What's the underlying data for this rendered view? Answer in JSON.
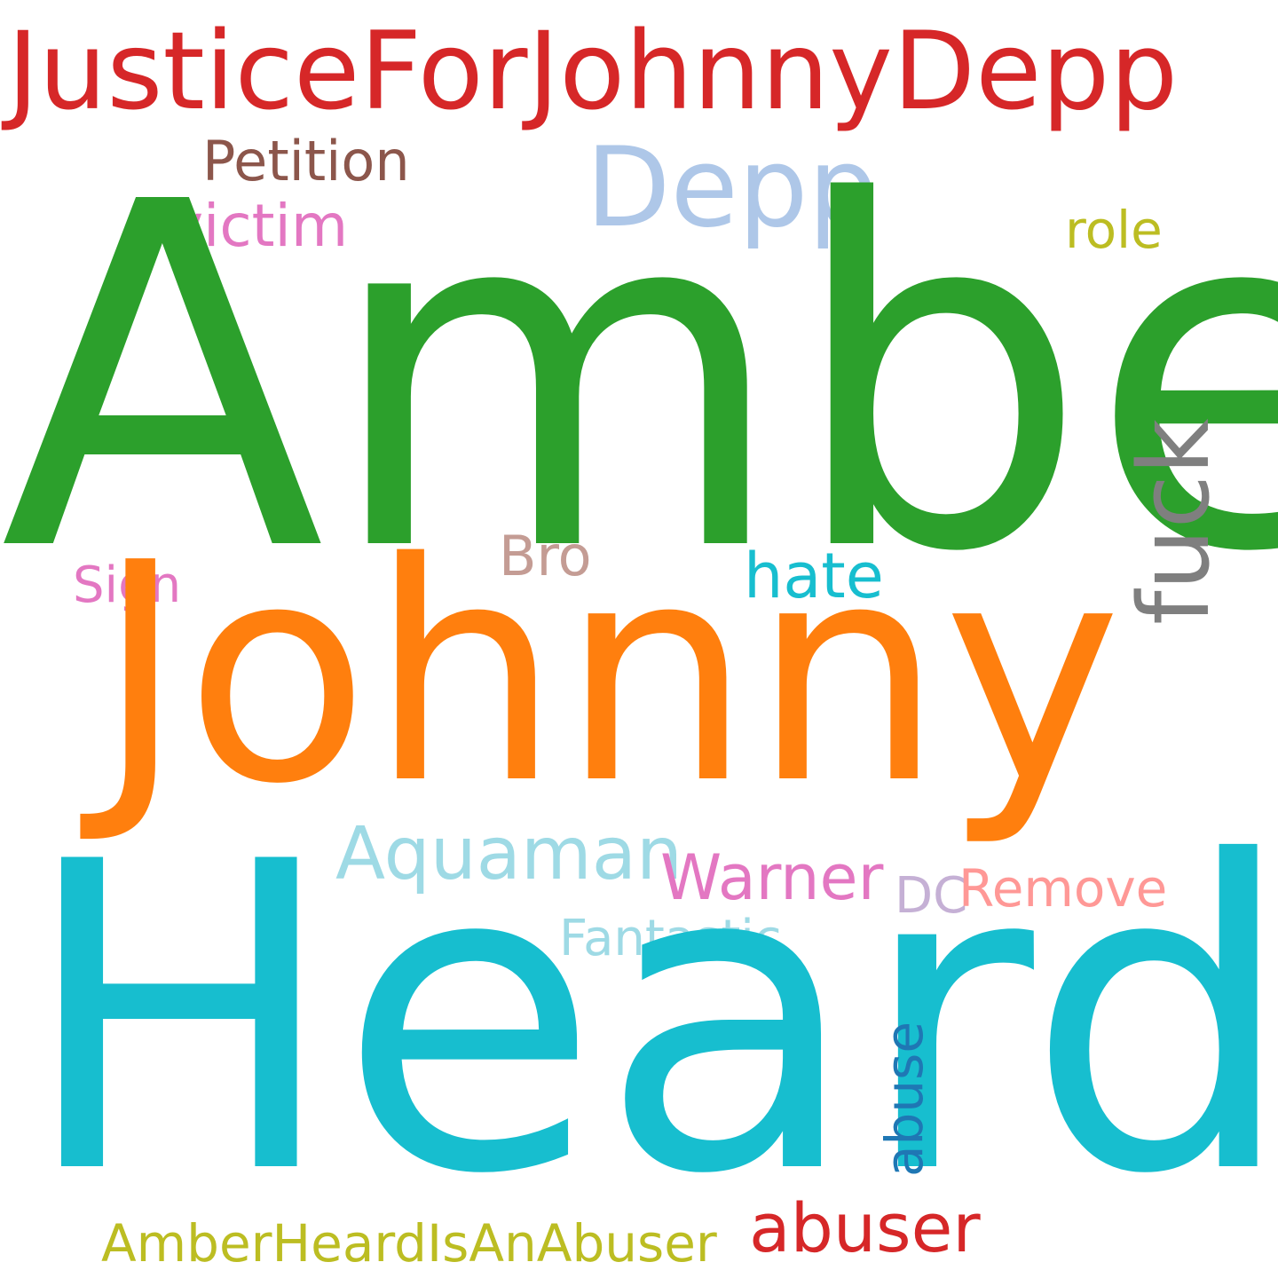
{
  "words": {
    "amber": {
      "text": "Amber",
      "color": "#2ca02c"
    },
    "heard": {
      "text": "Heard",
      "color": "#17becf"
    },
    "johnny": {
      "text": "Johnny",
      "color": "#ff7f0e"
    },
    "justice": {
      "text": "JusticeForJohnnyDepp",
      "color": "#d62728"
    },
    "depp": {
      "text": "Depp",
      "color": "#aec7e8"
    },
    "fuck": {
      "text": "fuck",
      "color": "#7f7f7f"
    },
    "petition": {
      "text": "Petition",
      "color": "#8c564b"
    },
    "victim": {
      "text": "victim",
      "color": "#e377c2"
    },
    "role": {
      "text": "role",
      "color": "#bcbd22"
    },
    "bro": {
      "text": "Bro",
      "color": "#c49c94"
    },
    "hate": {
      "text": "hate",
      "color": "#17becf"
    },
    "sign": {
      "text": "Sign",
      "color": "#e377c2"
    },
    "aquaman": {
      "text": "Aquaman",
      "color": "#9edae5"
    },
    "warner": {
      "text": "Warner",
      "color": "#e377c2"
    },
    "dc": {
      "text": "DC",
      "color": "#c5b0d5"
    },
    "remove": {
      "text": "Remove",
      "color": "#ff9896"
    },
    "fantastic": {
      "text": "Fantastic",
      "color": "#9edae5"
    },
    "abuse": {
      "text": "abuse",
      "color": "#1f77b4"
    },
    "abuser": {
      "text": "abuser",
      "color": "#d62728"
    },
    "amberheardisanabuser": {
      "text": "AmberHeardIsAnAbuser",
      "color": "#bcbd22"
    }
  }
}
